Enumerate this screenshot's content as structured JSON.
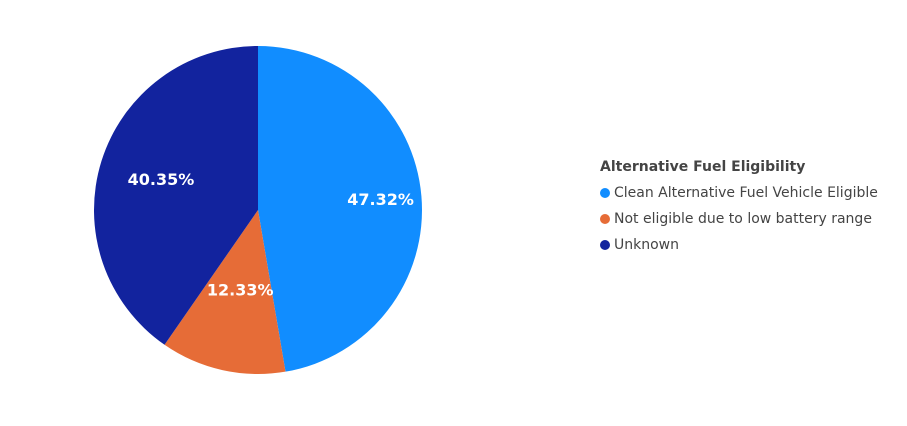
{
  "chart_data": {
    "type": "pie",
    "legend_title": "Alternative Fuel Eligibility",
    "legend_position": "right",
    "slices": [
      {
        "label": "Clean Alternative Fuel Vehicle Eligible",
        "value": 47.32,
        "display": "47.32%",
        "color": "#118DFF"
      },
      {
        "label": "Not eligible due to low battery range",
        "value": 12.33,
        "display": "12.33%",
        "color": "#E66C37"
      },
      {
        "label": "Unknown",
        "value": 40.35,
        "display": "40.35%",
        "color": "#12239E"
      }
    ]
  }
}
